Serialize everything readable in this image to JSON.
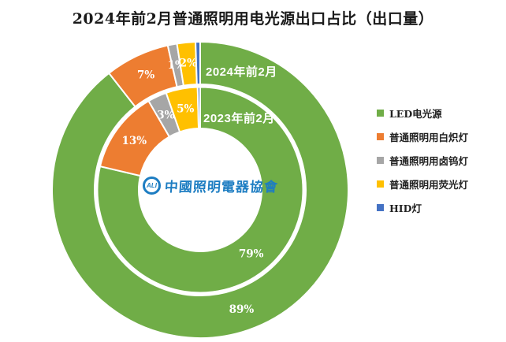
{
  "title": "2024年前2月普通照明用电光源出口占比（出口量）",
  "watermark": {
    "logo_text": "ALI",
    "org_name": "中國照明電器協會",
    "color": "#1d7dc2"
  },
  "legend": {
    "items": [
      {
        "label": "LED电光源",
        "color": "#70AD47"
      },
      {
        "label": "普通照明用白炽灯",
        "color": "#ED7D31"
      },
      {
        "label": "普通照明用卤钨灯",
        "color": "#A6A6A6"
      },
      {
        "label": "普通照明用荧光灯",
        "color": "#FFC000"
      },
      {
        "label": "HID灯",
        "color": "#4472C4"
      }
    ]
  },
  "chart_data": {
    "type": "donut",
    "title": "2024年前2月普通照明用电光源出口占比（出口量）",
    "legend_position": "right",
    "categories": [
      "LED电光源",
      "普通照明用白炽灯",
      "普通照明用卤钨灯",
      "普通照明用荧光灯",
      "HID灯"
    ],
    "category_ids": [
      "led",
      "incandescent",
      "halogen-tungsten",
      "fluorescent",
      "hid"
    ],
    "colors": [
      "#70AD47",
      "#ED7D31",
      "#A6A6A6",
      "#FFC000",
      "#4472C4"
    ],
    "slice_border_color": "#ffffff",
    "rings": [
      {
        "id": "2024",
        "name": "2024年前2月",
        "position": "outer",
        "values": [
          89,
          7,
          1,
          2,
          0.5
        ],
        "labels": [
          "89%",
          "7%",
          "1%",
          "2%",
          ""
        ]
      },
      {
        "id": "2023",
        "name": "2023年前2月",
        "position": "inner",
        "values": [
          79,
          13,
          3,
          5,
          0.4
        ],
        "labels": [
          "79%",
          "13%",
          "3%",
          "5%",
          ""
        ]
      }
    ]
  }
}
